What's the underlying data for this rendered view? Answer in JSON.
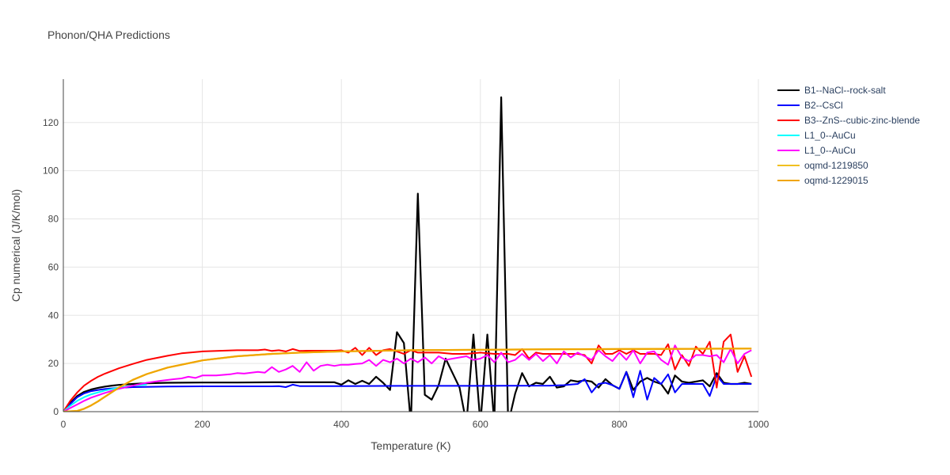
{
  "chart_data": {
    "type": "line",
    "title": "Phonon/QHA Predictions",
    "xlabel": "Temperature (K)",
    "ylabel": "Cp numerical (J/K/mol)",
    "xlim": [
      0,
      1000
    ],
    "ylim": [
      0,
      138
    ],
    "xticks": [
      0,
      200,
      400,
      600,
      800,
      1000
    ],
    "yticks": [
      0,
      20,
      40,
      60,
      80,
      100,
      120
    ],
    "xtick_labels": [
      "0",
      "200",
      "400",
      "600",
      "800",
      "1000"
    ],
    "ytick_labels": [
      "0",
      "20",
      "40",
      "60",
      "80",
      "100",
      "120"
    ],
    "grid": true,
    "legend_position": "right",
    "series": [
      {
        "name": "B1--NaCl--rock-salt",
        "color": "#000000",
        "x": [
          0,
          10,
          20,
          30,
          40,
          50,
          60,
          70,
          80,
          100,
          120,
          150,
          200,
          250,
          300,
          350,
          390,
          400,
          410,
          420,
          430,
          440,
          450,
          460,
          470,
          480,
          490,
          500,
          510,
          520,
          530,
          540,
          550,
          560,
          570,
          580,
          590,
          600,
          610,
          620,
          630,
          640,
          650,
          660,
          670,
          680,
          690,
          700,
          710,
          720,
          730,
          740,
          750,
          760,
          770,
          780,
          790,
          800,
          810,
          820,
          830,
          840,
          850,
          860,
          870,
          880,
          890,
          900,
          910,
          920,
          930,
          940,
          950,
          960,
          970,
          980,
          990
        ],
        "y": [
          0,
          3.5,
          6.5,
          8.2,
          9.2,
          9.9,
          10.4,
          10.8,
          11.1,
          11.5,
          11.8,
          12.0,
          12.1,
          12.1,
          12.2,
          12.2,
          12.2,
          11.2,
          13.0,
          11.5,
          12.8,
          11.5,
          14.5,
          12.0,
          9.0,
          33.0,
          28.5,
          -5,
          90.5,
          7.0,
          5.0,
          11.0,
          22.0,
          16.0,
          10.0,
          -5,
          32.0,
          -5,
          32.0,
          -5,
          130.5,
          -5,
          7.5,
          16.0,
          10.5,
          12.0,
          11.5,
          14.5,
          10.0,
          10.5,
          13.0,
          12.5,
          13.0,
          12.5,
          10.0,
          13.5,
          11.0,
          9.5,
          16.5,
          9.0,
          12.5,
          14.0,
          12.5,
          11.5,
          7.5,
          15.0,
          12.5,
          12.0,
          12.5,
          13.0,
          10.5,
          16.0,
          12.0,
          11.5,
          11.5,
          12.0,
          11.5
        ]
      },
      {
        "name": "B2--CsCl",
        "color": "#0000ff",
        "x": [
          0,
          10,
          20,
          30,
          40,
          50,
          60,
          80,
          100,
          150,
          200,
          300,
          310,
          320,
          330,
          340,
          400,
          500,
          600,
          700,
          720,
          740,
          750,
          760,
          770,
          780,
          790,
          800,
          810,
          820,
          830,
          840,
          850,
          860,
          870,
          880,
          890,
          900,
          920,
          930,
          940,
          950,
          960,
          990
        ],
        "y": [
          0,
          3.2,
          6.0,
          7.6,
          8.5,
          9.0,
          9.4,
          9.9,
          10.2,
          10.4,
          10.5,
          10.5,
          10.6,
          10.2,
          11.2,
          10.6,
          10.6,
          10.7,
          10.7,
          10.8,
          11.0,
          11.5,
          13.5,
          8.0,
          11.5,
          12.0,
          11.0,
          9.5,
          16.5,
          6.0,
          17.0,
          5.0,
          14.0,
          11.5,
          15.5,
          8.0,
          11.5,
          11.5,
          11.5,
          6.5,
          15.0,
          11.5,
          11.5,
          11.5
        ]
      },
      {
        "name": "B3--ZnS--cubic-zinc-blende",
        "color": "#ff0000",
        "x": [
          0,
          10,
          20,
          30,
          40,
          50,
          60,
          80,
          100,
          120,
          150,
          170,
          200,
          250,
          280,
          290,
          300,
          310,
          320,
          330,
          340,
          350,
          380,
          390,
          400,
          410,
          420,
          430,
          440,
          450,
          460,
          470,
          480,
          490,
          500,
          510,
          520,
          540,
          560,
          580,
          600,
          620,
          640,
          650,
          660,
          670,
          680,
          690,
          700,
          720,
          740,
          750,
          760,
          770,
          780,
          790,
          800,
          810,
          820,
          830,
          840,
          850,
          860,
          870,
          880,
          890,
          900,
          910,
          920,
          930,
          940,
          950,
          960,
          970,
          980,
          990
        ],
        "y": [
          0,
          4.5,
          8.0,
          10.8,
          12.8,
          14.5,
          15.8,
          18.0,
          19.8,
          21.5,
          23.2,
          24.2,
          25.0,
          25.5,
          25.5,
          25.8,
          25.2,
          25.5,
          25.0,
          26.0,
          25.2,
          25.3,
          25.3,
          25.3,
          25.5,
          24.5,
          26.5,
          23.5,
          26.5,
          23.5,
          25.5,
          26.0,
          25.0,
          24.0,
          25.5,
          24.5,
          24.5,
          24.5,
          24.0,
          24.0,
          24.5,
          24.0,
          24.0,
          23.5,
          26.0,
          22.0,
          24.5,
          24.0,
          24.0,
          24.0,
          24.0,
          23.5,
          20.0,
          27.5,
          24.0,
          24.0,
          25.5,
          24.0,
          25.5,
          24.0,
          24.0,
          24.0,
          23.5,
          28.0,
          17.5,
          23.5,
          19.0,
          27.0,
          24.0,
          29.0,
          10.0,
          29.0,
          32.0,
          16.5,
          23.0,
          14.5
        ]
      },
      {
        "name": "L1_0--AuCu",
        "color": "#00ffff",
        "x": [
          0,
          10,
          20,
          30,
          40,
          60,
          80,
          100,
          120
        ],
        "y": [
          0,
          2.5,
          4.5,
          6.0,
          7.2,
          8.8,
          10.0,
          10.8,
          11.2
        ]
      },
      {
        "name": "L1_0--AuCu",
        "color": "#ff00ff",
        "x": [
          0,
          10,
          20,
          30,
          40,
          50,
          60,
          80,
          100,
          120,
          140,
          160,
          170,
          180,
          190,
          200,
          220,
          240,
          250,
          260,
          280,
          290,
          300,
          310,
          320,
          330,
          340,
          350,
          360,
          370,
          380,
          390,
          400,
          410,
          420,
          430,
          440,
          450,
          460,
          470,
          480,
          490,
          500,
          510,
          520,
          530,
          540,
          550,
          560,
          570,
          580,
          590,
          600,
          610,
          620,
          630,
          640,
          650,
          660,
          670,
          680,
          690,
          700,
          710,
          720,
          730,
          740,
          750,
          760,
          770,
          780,
          790,
          800,
          810,
          820,
          830,
          840,
          850,
          860,
          870,
          880,
          890,
          900,
          910,
          920,
          930,
          940,
          950,
          960,
          970,
          980,
          990
        ],
        "y": [
          0,
          1.5,
          3.0,
          4.5,
          5.8,
          6.8,
          7.8,
          9.5,
          10.8,
          12.0,
          12.8,
          13.5,
          13.8,
          14.5,
          14.0,
          15.0,
          15.0,
          15.5,
          16.0,
          15.8,
          16.5,
          16.2,
          18.5,
          16.5,
          17.5,
          19.0,
          16.5,
          20.5,
          17.0,
          19.0,
          19.5,
          19.0,
          19.5,
          19.5,
          19.8,
          20.0,
          21.5,
          19.0,
          21.5,
          20.5,
          22.0,
          20.0,
          22.0,
          20.5,
          22.5,
          20.0,
          23.0,
          21.5,
          22.0,
          22.5,
          23.0,
          21.5,
          22.0,
          23.5,
          20.5,
          24.5,
          20.5,
          21.5,
          24.0,
          21.5,
          24.0,
          21.0,
          23.5,
          20.0,
          25.0,
          22.5,
          24.5,
          23.0,
          21.5,
          25.5,
          23.0,
          21.0,
          24.5,
          21.5,
          25.5,
          20.0,
          24.5,
          25.0,
          21.5,
          19.5,
          27.5,
          22.5,
          21.0,
          23.5,
          23.5,
          23.0,
          23.5,
          20.5,
          26.0,
          20.0,
          24.0,
          25.5
        ]
      },
      {
        "name": "oqmd-1219850",
        "color": "#f0c020",
        "x": [
          0,
          20,
          30,
          40,
          50,
          60,
          70,
          80,
          100,
          120,
          150,
          200,
          250,
          300,
          350,
          400,
          500,
          600,
          700,
          800,
          900,
          990
        ],
        "y": [
          0,
          0.3,
          1.2,
          2.6,
          4.3,
          6.2,
          8.1,
          10.0,
          13.2,
          15.6,
          18.3,
          21.3,
          23.0,
          24.0,
          24.6,
          25.0,
          25.5,
          25.7,
          25.9,
          26.0,
          26.1,
          26.2
        ]
      },
      {
        "name": "oqmd-1229015",
        "color": "#f0a500",
        "x": [
          0,
          20,
          30,
          40,
          50,
          60,
          70,
          80,
          100,
          120,
          150,
          200,
          250,
          300,
          350,
          400,
          500,
          600,
          700,
          800,
          900,
          990
        ],
        "y": [
          0,
          0.3,
          1.2,
          2.6,
          4.3,
          6.2,
          8.1,
          10.0,
          13.2,
          15.6,
          18.3,
          21.3,
          23.0,
          24.0,
          24.6,
          25.0,
          25.5,
          25.7,
          25.9,
          26.0,
          26.1,
          26.2
        ]
      }
    ]
  }
}
